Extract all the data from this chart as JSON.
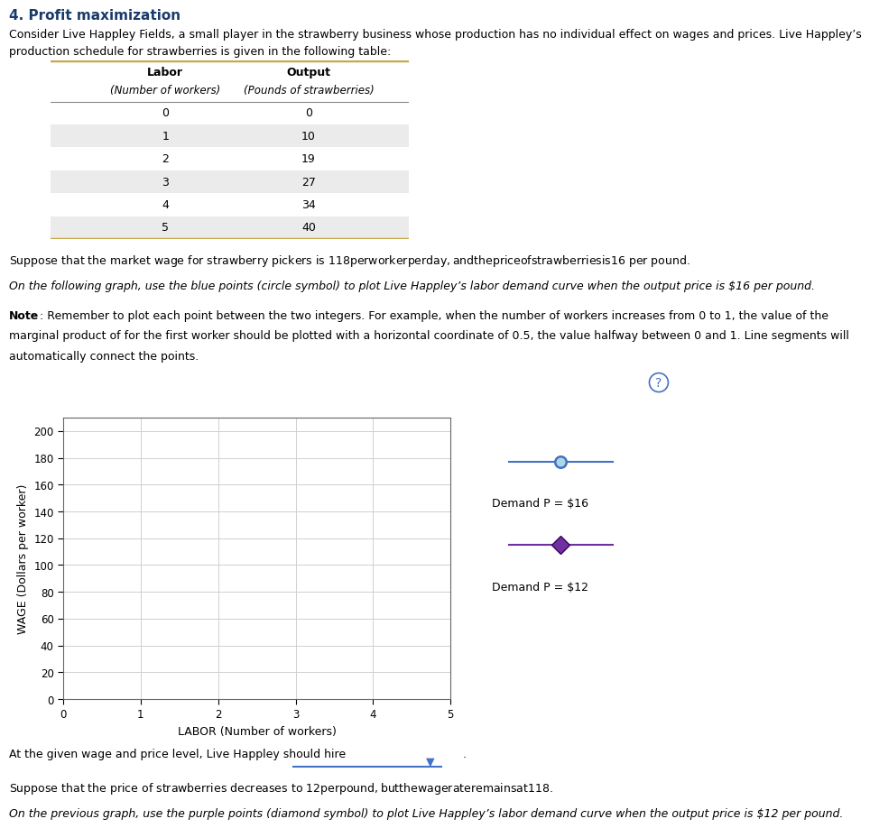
{
  "title": "4. Profit maximization",
  "intro_line1": "Consider Live Happley Fields, a small player in the strawberry business whose production has no individual effect on wages and prices. Live Happley’s",
  "intro_line2": "production schedule for strawberries is given in the following table:",
  "table_labor": [
    0,
    1,
    2,
    3,
    4,
    5
  ],
  "table_output": [
    0,
    10,
    19,
    27,
    34,
    40
  ],
  "table_header_labor": "Labor",
  "table_header_labor2": "(Number of workers)",
  "table_header_output": "Output",
  "table_header_output2": "(Pounds of strawberries)",
  "para1": "Suppose that the market wage for strawberry pickers is $118 per worker per day, and the price of strawberries is $16 per pound.",
  "para2_italic": "On the following graph, use the blue points (circle symbol) to plot Live Happley’s labor demand curve when the output price is $16 per pound.",
  "note_bold": "Note",
  "note_rest": ": Remember to plot each point between the two integers. For example, when the number of workers increases from 0 to 1, the value of the",
  "note_line2": "marginal product of for the first worker should be plotted with a horizontal coordinate of 0.5, the value halfway between 0 and 1. Line segments will",
  "note_line3": "automatically connect the points.",
  "xlabel": "LABOR (Number of workers)",
  "ylabel": "WAGE (Dollars per worker)",
  "ylim": [
    0,
    210
  ],
  "xlim": [
    0,
    5
  ],
  "yticks": [
    0,
    20,
    40,
    60,
    80,
    100,
    120,
    140,
    160,
    180,
    200
  ],
  "xticks": [
    0,
    1,
    2,
    3,
    4,
    5
  ],
  "legend_label_16": "Demand P = $16",
  "legend_label_12": "Demand P = $12",
  "blue_color": "#4472C4",
  "blue_face": "#ADD8E6",
  "purple_color": "#7030A0",
  "purple_edge": "#3a0060",
  "bottom_line1": "At the given wage and price level, Live Happley should hire",
  "bottom_line2": "Suppose that the price of strawberries decreases to $12 per pound, but the wage rate remains at $118.",
  "bottom_line3": "On the previous graph, use the purple points (diamond symbol) to plot Live Happley’s labor demand curve when the output price is $12 per pound.",
  "bg_color": "#ffffff",
  "grid_color": "#d0d0d0",
  "box_bg": "#f0f0f0",
  "table_odd_bg": "#ebebeb",
  "table_even_bg": "#ffffff",
  "table_border": "#c8a84b"
}
